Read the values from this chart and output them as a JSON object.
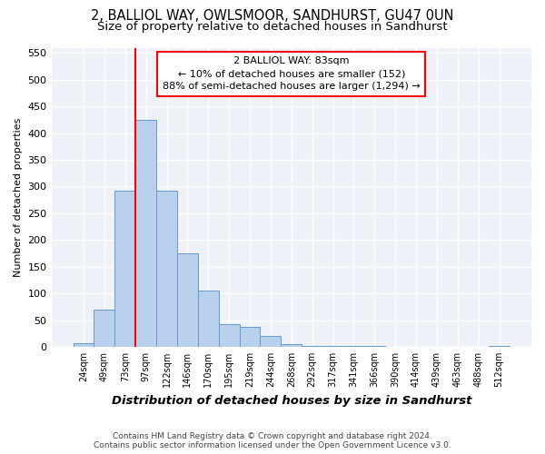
{
  "title_line1": "2, BALLIOL WAY, OWLSMOOR, SANDHURST, GU47 0UN",
  "title_line2": "Size of property relative to detached houses in Sandhurst",
  "xlabel": "Distribution of detached houses by size in Sandhurst",
  "ylabel": "Number of detached properties",
  "bar_labels": [
    "24sqm",
    "49sqm",
    "73sqm",
    "97sqm",
    "122sqm",
    "146sqm",
    "170sqm",
    "195sqm",
    "219sqm",
    "244sqm",
    "268sqm",
    "292sqm",
    "317sqm",
    "341sqm",
    "366sqm",
    "390sqm",
    "414sqm",
    "439sqm",
    "463sqm",
    "488sqm",
    "512sqm"
  ],
  "bar_values": [
    7,
    70,
    293,
    425,
    293,
    175,
    105,
    43,
    38,
    20,
    5,
    2,
    1,
    1,
    1,
    0,
    0,
    0,
    0,
    0,
    1
  ],
  "bar_color": "#b8d0eb",
  "bar_edge_color": "#6699cc",
  "bar_edge_width": 0.7,
  "vline_color": "red",
  "vline_x_pos": 2.5,
  "annotation_text": "2 BALLIOL WAY: 83sqm\n← 10% of detached houses are smaller (152)\n88% of semi-detached houses are larger (1,294) →",
  "annotation_fontsize": 8.0,
  "ylim": [
    0,
    560
  ],
  "yticks": [
    0,
    50,
    100,
    150,
    200,
    250,
    300,
    350,
    400,
    450,
    500,
    550
  ],
  "bg_color": "#eef2f8",
  "grid_color": "#ffffff",
  "footer_line1": "Contains HM Land Registry data © Crown copyright and database right 2024.",
  "footer_line2": "Contains public sector information licensed under the Open Government Licence v3.0.",
  "title_fontsize": 10.5,
  "subtitle_fontsize": 9.5,
  "xlabel_fontsize": 9.5,
  "ylabel_fontsize": 8
}
